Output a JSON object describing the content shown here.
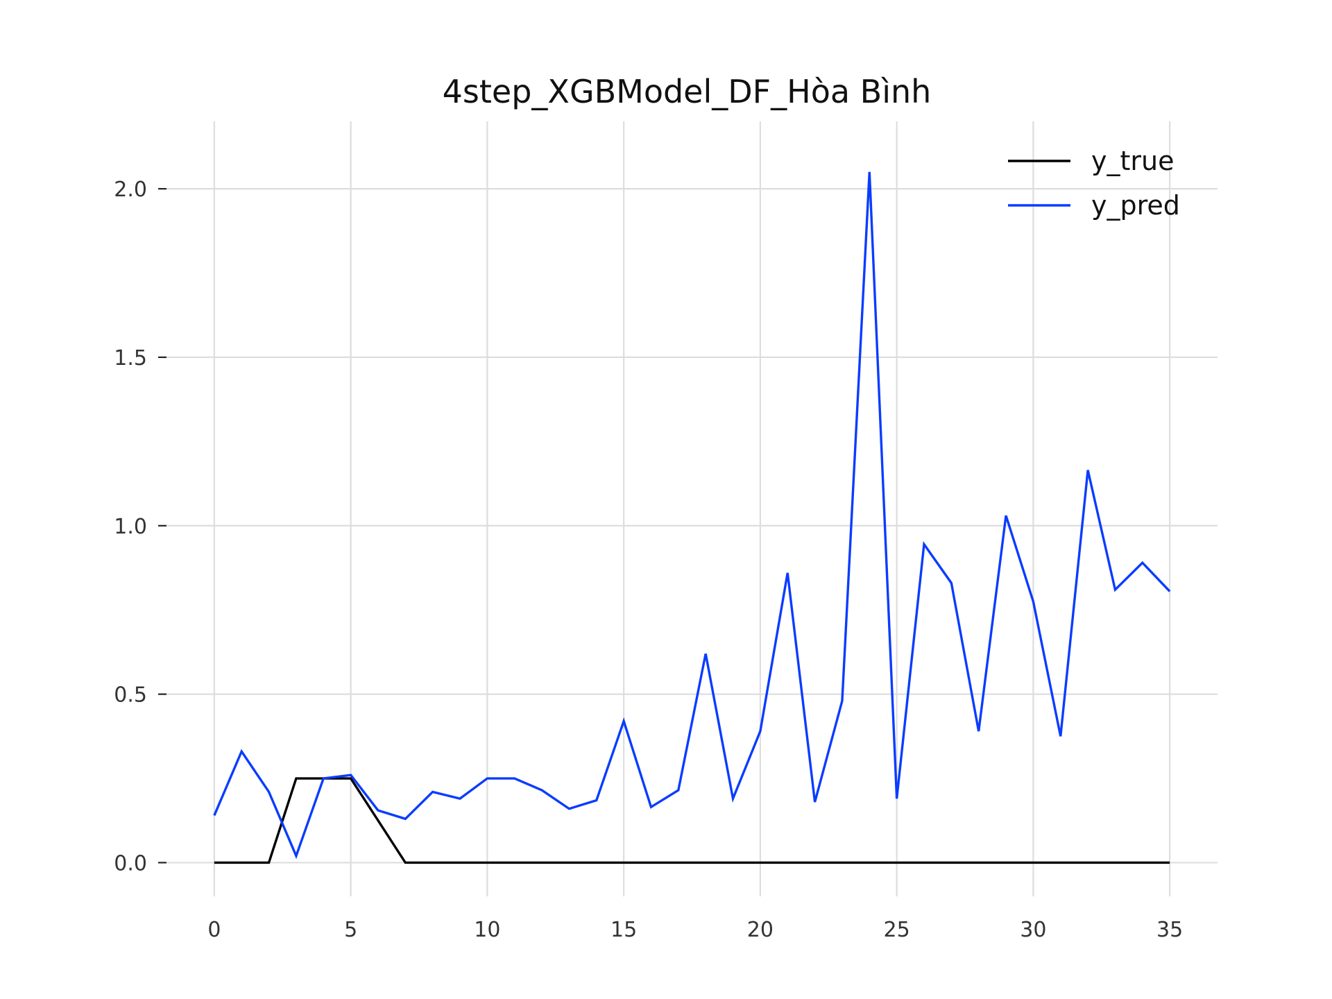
{
  "chart_data": {
    "type": "line",
    "title": "4step_XGBModel_DF_Hòa Bình",
    "xlabel": "",
    "ylabel": "",
    "xlim": [
      -1.75,
      36.75
    ],
    "ylim": [
      -0.1,
      2.2
    ],
    "xticks": [
      0,
      5,
      10,
      15,
      20,
      25,
      30,
      35
    ],
    "xtick_labels": [
      "0",
      "5",
      "10",
      "15",
      "20",
      "25",
      "30",
      "35"
    ],
    "yticks": [
      0.0,
      0.5,
      1.0,
      1.5,
      2.0
    ],
    "ytick_labels": [
      "0.0",
      "0.5",
      "1.0",
      "1.5",
      "2.0"
    ],
    "grid": true,
    "legend_position": "top-right",
    "x": [
      0,
      1,
      2,
      3,
      4,
      5,
      6,
      7,
      8,
      9,
      10,
      11,
      12,
      13,
      14,
      15,
      16,
      17,
      18,
      19,
      20,
      21,
      22,
      23,
      24,
      25,
      26,
      27,
      28,
      29,
      30,
      31,
      32,
      33,
      34,
      35
    ],
    "series": [
      {
        "name": "y_true",
        "color": "#000000",
        "values": [
          0,
          0,
          0,
          0.25,
          0.25,
          0.25,
          0.125,
          0,
          0,
          0,
          0,
          0,
          0,
          0,
          0,
          0,
          0,
          0,
          0,
          0,
          0,
          0,
          0,
          0,
          0,
          0,
          0,
          0,
          0,
          0,
          0,
          0,
          0,
          0,
          0,
          0
        ]
      },
      {
        "name": "y_pred",
        "color": "#0a3cff",
        "values": [
          0.14,
          0.33,
          0.21,
          0.02,
          0.25,
          0.26,
          0.155,
          0.13,
          0.21,
          0.19,
          0.25,
          0.25,
          0.215,
          0.16,
          0.185,
          0.42,
          0.165,
          0.215,
          0.62,
          0.19,
          0.39,
          0.86,
          0.18,
          0.48,
          2.05,
          0.19,
          0.945,
          0.83,
          0.39,
          1.03,
          0.775,
          0.375,
          1.165,
          0.81,
          0.89,
          0.805
        ]
      }
    ]
  }
}
